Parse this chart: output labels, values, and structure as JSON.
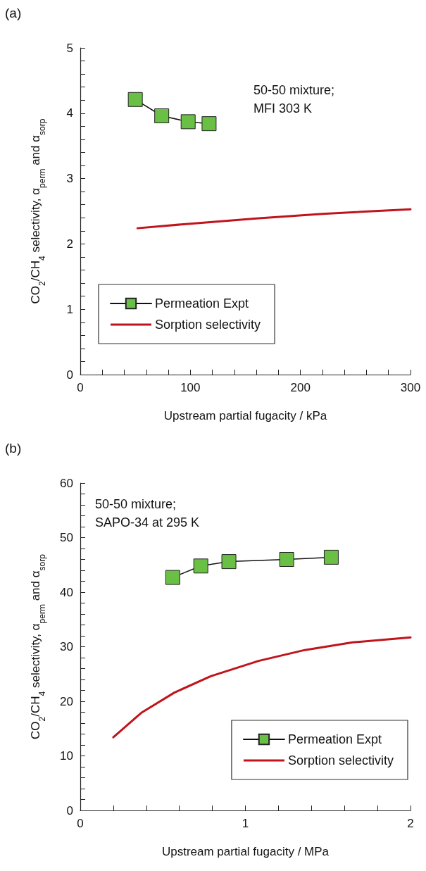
{
  "chart_data": [
    {
      "type": "line",
      "title": "(a)",
      "xlabel": "Upstream partial fugacity / kPa",
      "ylabel": "CO$_{2}$/CH$_{4}$ selectivity, α$_{perm}$ and α$_{sorp}$",
      "annotations": [
        "50-50 mixture;\nMFI 303 K"
      ],
      "series": [
        {
          "name": "Permeation Expt",
          "color": "#6abf45",
          "marker": "square",
          "x": [
            50,
            74,
            98,
            117
          ],
          "values": [
            4.21,
            3.96,
            3.87,
            3.84
          ]
        },
        {
          "name": "Sorption selectivity",
          "color": "#c0141c",
          "marker": "none",
          "x": [
            52,
            100,
            160,
            220,
            300
          ],
          "values": [
            2.24,
            2.31,
            2.39,
            2.46,
            2.53
          ]
        }
      ],
      "xlim": [
        0,
        300
      ],
      "ylim": [
        0,
        5
      ],
      "xticks": [
        0,
        {
          "value": 20,
          "label": null
        },
        {
          "value": 40,
          "label": null
        },
        {
          "value": 60,
          "label": null
        },
        {
          "value": 80,
          "label": null
        },
        100,
        {
          "value": 120,
          "label": null
        },
        {
          "value": 140,
          "label": null
        },
        {
          "value": 160,
          "label": null
        },
        {
          "value": 180,
          "label": null
        },
        200,
        {
          "value": 220,
          "label": null
        },
        {
          "value": 240,
          "label": null
        },
        {
          "value": 260,
          "label": null
        },
        {
          "value": 280,
          "label": null
        },
        300
      ],
      "yticks": [
        0,
        {
          "value": 0.2,
          "label": null
        },
        {
          "value": 0.4,
          "label": null
        },
        {
          "value": 0.6,
          "label": null
        },
        {
          "value": 0.8,
          "label": null
        },
        1,
        {
          "value": 1.2,
          "label": null
        },
        {
          "value": 1.4,
          "label": null
        },
        {
          "value": 1.6,
          "label": null
        },
        {
          "value": 1.8,
          "label": null
        },
        2,
        {
          "value": 2.2,
          "label": null
        },
        {
          "value": 2.4,
          "label": null
        },
        {
          "value": 2.6,
          "label": null
        },
        {
          "value": 2.8,
          "label": null
        },
        3,
        {
          "value": 3.2,
          "label": null
        },
        {
          "value": 3.4,
          "label": null
        },
        {
          "value": 3.6,
          "label": null
        },
        {
          "value": 3.8,
          "label": null
        },
        4,
        {
          "value": 4.2,
          "label": null
        },
        {
          "value": 4.4,
          "label": null
        },
        {
          "value": 4.6,
          "label": null
        },
        {
          "value": 4.8,
          "label": null
        },
        5
      ],
      "legend": "bottom left",
      "grid": false
    },
    {
      "type": "line",
      "title": "(b)",
      "xlabel": "Upstream partial fugacity / MPa",
      "ylabel": "CO$_{2}$/CH$_{4}$ selectivity, α$_{perm}$ and α$_{sorp}$",
      "annotations": [
        "50-50 mixture;\nSAPO-34 at 295 K"
      ],
      "series": [
        {
          "name": "Permeation Expt",
          "color": "#6abf45",
          "marker": "square",
          "x": [
            0.56,
            0.73,
            0.9,
            1.25,
            1.52
          ],
          "values": [
            42.7,
            44.8,
            45.6,
            46.0,
            46.4
          ]
        },
        {
          "name": "Sorption selectivity",
          "color": "#c0141c",
          "marker": "none",
          "x": [
            0.2,
            0.37,
            0.57,
            0.79,
            1.08,
            1.36,
            1.65,
            2.0
          ],
          "values": [
            13.4,
            17.9,
            21.6,
            24.6,
            27.4,
            29.4,
            30.8,
            31.7
          ]
        }
      ],
      "xlim": [
        0,
        2
      ],
      "ylim": [
        0,
        60
      ],
      "xticks": [
        0,
        {
          "value": 0.2,
          "label": null
        },
        {
          "value": 0.4,
          "label": null
        },
        {
          "value": 0.6,
          "label": null
        },
        {
          "value": 0.8,
          "label": null
        },
        1,
        {
          "value": 1.2,
          "label": null
        },
        {
          "value": 1.4,
          "label": null
        },
        {
          "value": 1.6,
          "label": null
        },
        {
          "value": 1.8,
          "label": null
        },
        2
      ],
      "yticks": [
        0,
        {
          "value": 2,
          "label": null
        },
        {
          "value": 4,
          "label": null
        },
        {
          "value": 6,
          "label": null
        },
        {
          "value": 8,
          "label": null
        },
        10,
        {
          "value": 12,
          "label": null
        },
        {
          "value": 14,
          "label": null
        },
        {
          "value": 16,
          "label": null
        },
        {
          "value": 18,
          "label": null
        },
        20,
        {
          "value": 22,
          "label": null
        },
        {
          "value": 24,
          "label": null
        },
        {
          "value": 26,
          "label": null
        },
        {
          "value": 28,
          "label": null
        },
        30,
        {
          "value": 32,
          "label": null
        },
        {
          "value": 34,
          "label": null
        },
        {
          "value": 36,
          "label": null
        },
        {
          "value": 38,
          "label": null
        },
        40,
        {
          "value": 42,
          "label": null
        },
        {
          "value": 44,
          "label": null
        },
        {
          "value": 46,
          "label": null
        },
        {
          "value": 48,
          "label": null
        },
        50,
        {
          "value": 52,
          "label": null
        },
        {
          "value": 54,
          "label": null
        },
        {
          "value": 56,
          "label": null
        },
        {
          "value": 58,
          "label": null
        },
        60
      ],
      "legend": "bottom right",
      "grid": false
    }
  ]
}
